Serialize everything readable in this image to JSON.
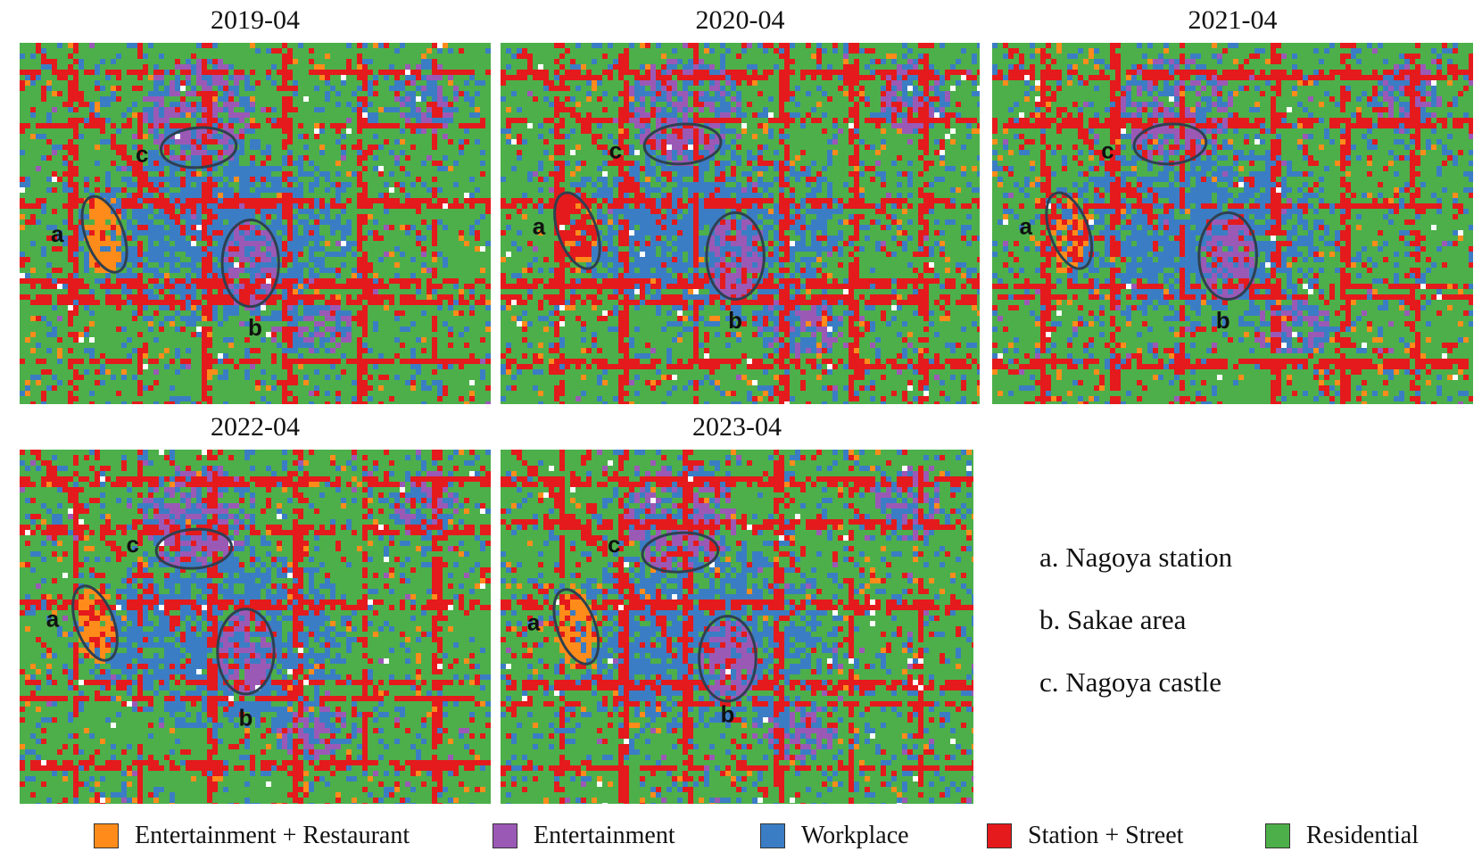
{
  "panels": [
    {
      "title": "2019-04",
      "labels": {
        "a": "a",
        "b": "b",
        "c": "c"
      }
    },
    {
      "title": "2020-04",
      "labels": {
        "a": "a",
        "b": "b",
        "c": "c"
      }
    },
    {
      "title": "2021-04",
      "labels": {
        "a": "a",
        "b": "b",
        "c": "c"
      }
    },
    {
      "title": "2022-04",
      "labels": {
        "a": "a",
        "b": "b",
        "c": "c"
      }
    },
    {
      "title": "2023-04",
      "labels": {
        "a": "a",
        "b": "b",
        "c": "c"
      }
    }
  ],
  "references": [
    "a. Nagoya station",
    "b. Sakae area",
    "c. Nagoya castle"
  ],
  "legend": [
    {
      "label": "Entertainment + Restaurant",
      "color": "#FF8C1A"
    },
    {
      "label": "Entertainment",
      "color": "#9B59B6"
    },
    {
      "label": "Workplace",
      "color": "#3B7DC4"
    },
    {
      "label": "Station + Street",
      "color": "#E41A1C"
    },
    {
      "label": "Residential",
      "color": "#4DAF4A"
    }
  ]
}
